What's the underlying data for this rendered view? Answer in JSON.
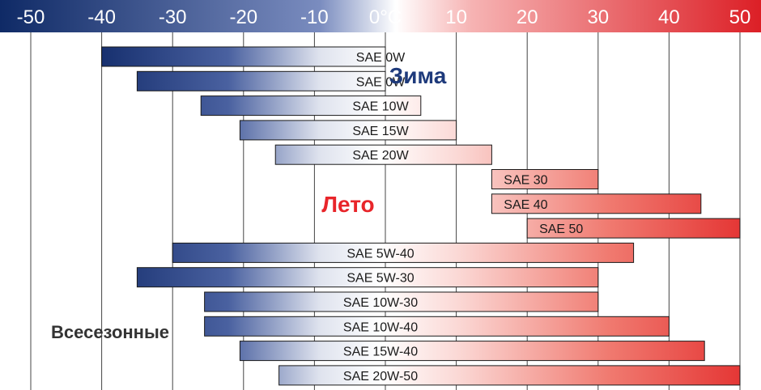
{
  "chart_data": {
    "type": "bar",
    "orientation": "horizontal",
    "title": "",
    "xlabel": "",
    "ylabel": "",
    "x_range": [
      -50,
      50
    ],
    "x_ticks": [
      -50,
      -40,
      -30,
      -20,
      -10,
      0,
      10,
      20,
      30,
      40,
      50
    ],
    "x_tick_labels": [
      "-50",
      "-40",
      "-30",
      "-20",
      "-10",
      "0°C",
      "10",
      "20",
      "30",
      "40",
      "50"
    ],
    "grid": true,
    "colors": {
      "cold": "#1e3a7b",
      "hot": "#e8252a",
      "winter_text": "#1e3a7b",
      "summer_text": "#e8252a",
      "allseason_text": "#333333"
    },
    "groups": [
      {
        "label": "Зима",
        "bars": [
          "SAE 0W",
          "SAE 0W",
          "SAE 10W",
          "SAE 15W",
          "SAE 20W"
        ]
      },
      {
        "label": "Лето",
        "bars": [
          "SAE 30",
          "SAE 40",
          "SAE 50"
        ]
      },
      {
        "label": "Всесезонные",
        "bars": [
          "SAE 5W-40",
          "SAE 5W-30",
          "SAE 10W-30",
          "SAE 10W-40",
          "SAE 15W-40",
          "SAE 20W-50"
        ]
      }
    ],
    "bars": [
      {
        "name": "SAE 0W",
        "min": -40,
        "max": 0
      },
      {
        "name": "SAE 0W",
        "min": -35,
        "max": 0
      },
      {
        "name": "SAE 10W",
        "min": -26,
        "max": 5
      },
      {
        "name": "SAE 15W",
        "min": -20.5,
        "max": 10
      },
      {
        "name": "SAE 20W",
        "min": -15.5,
        "max": 15
      },
      {
        "name": "SAE 30",
        "min": 15,
        "max": 30
      },
      {
        "name": "SAE 40",
        "min": 15,
        "max": 44.5
      },
      {
        "name": "SAE 50",
        "min": 20,
        "max": 50
      },
      {
        "name": "SAE 5W-40",
        "min": -30,
        "max": 35
      },
      {
        "name": "SAE 5W-30",
        "min": -35,
        "max": 30
      },
      {
        "name": "SAE 10W-30",
        "min": -25.5,
        "max": 30
      },
      {
        "name": "SAE 10W-40",
        "min": -25.5,
        "max": 40
      },
      {
        "name": "SAE 15W-40",
        "min": -20.5,
        "max": 45
      },
      {
        "name": "SAE 20W-50",
        "min": -15,
        "max": 50
      }
    ]
  }
}
